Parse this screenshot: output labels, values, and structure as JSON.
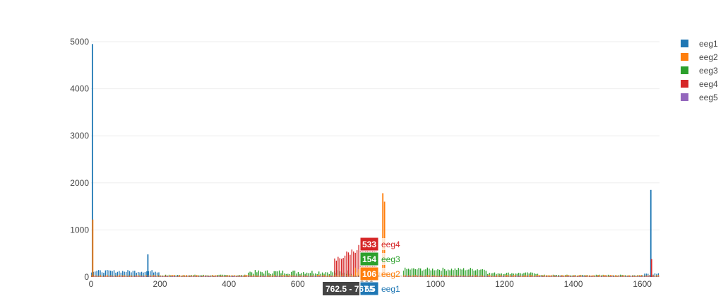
{
  "chart_data": {
    "type": "bar",
    "xlim": [
      0,
      1650
    ],
    "ylim": [
      0,
      5000
    ],
    "x_ticks": [
      "0",
      "200",
      "400",
      "600",
      "800",
      "1000",
      "1200",
      "1400",
      "1600"
    ],
    "y_ticks": [
      "0",
      "1000",
      "2000",
      "3000",
      "4000",
      "5000"
    ],
    "grid": true,
    "legend_position": "top-right",
    "series": [
      {
        "name": "eeg1",
        "color": "#1f77b4"
      },
      {
        "name": "eeg2",
        "color": "#ff7f0e"
      },
      {
        "name": "eeg3",
        "color": "#2ca02c"
      },
      {
        "name": "eeg4",
        "color": "#d62728"
      },
      {
        "name": "eeg5",
        "color": "#9467bd"
      }
    ],
    "peaks": [
      {
        "series": "eeg1",
        "x": 2,
        "y": 4950
      },
      {
        "series": "eeg2",
        "x": 3,
        "y": 1220
      },
      {
        "series": "eeg1",
        "x": 163,
        "y": 480
      },
      {
        "series": "eeg2",
        "x": 845,
        "y": 1780
      },
      {
        "series": "eeg2",
        "x": 850,
        "y": 1600
      },
      {
        "series": "eeg1",
        "x": 1623,
        "y": 1850
      },
      {
        "series": "eeg4",
        "x": 1625,
        "y": 380
      }
    ],
    "hover": {
      "x_label": "762.5 - 767.5",
      "items": [
        {
          "series": "eeg4",
          "value": "533",
          "color": "#d62728"
        },
        {
          "series": "eeg3",
          "value": "154",
          "color": "#2ca02c"
        },
        {
          "series": "eeg2",
          "value": "106",
          "color": "#ff7f0e"
        },
        {
          "series": "eeg1",
          "value": "65",
          "color": "#1f77b4"
        }
      ]
    }
  }
}
